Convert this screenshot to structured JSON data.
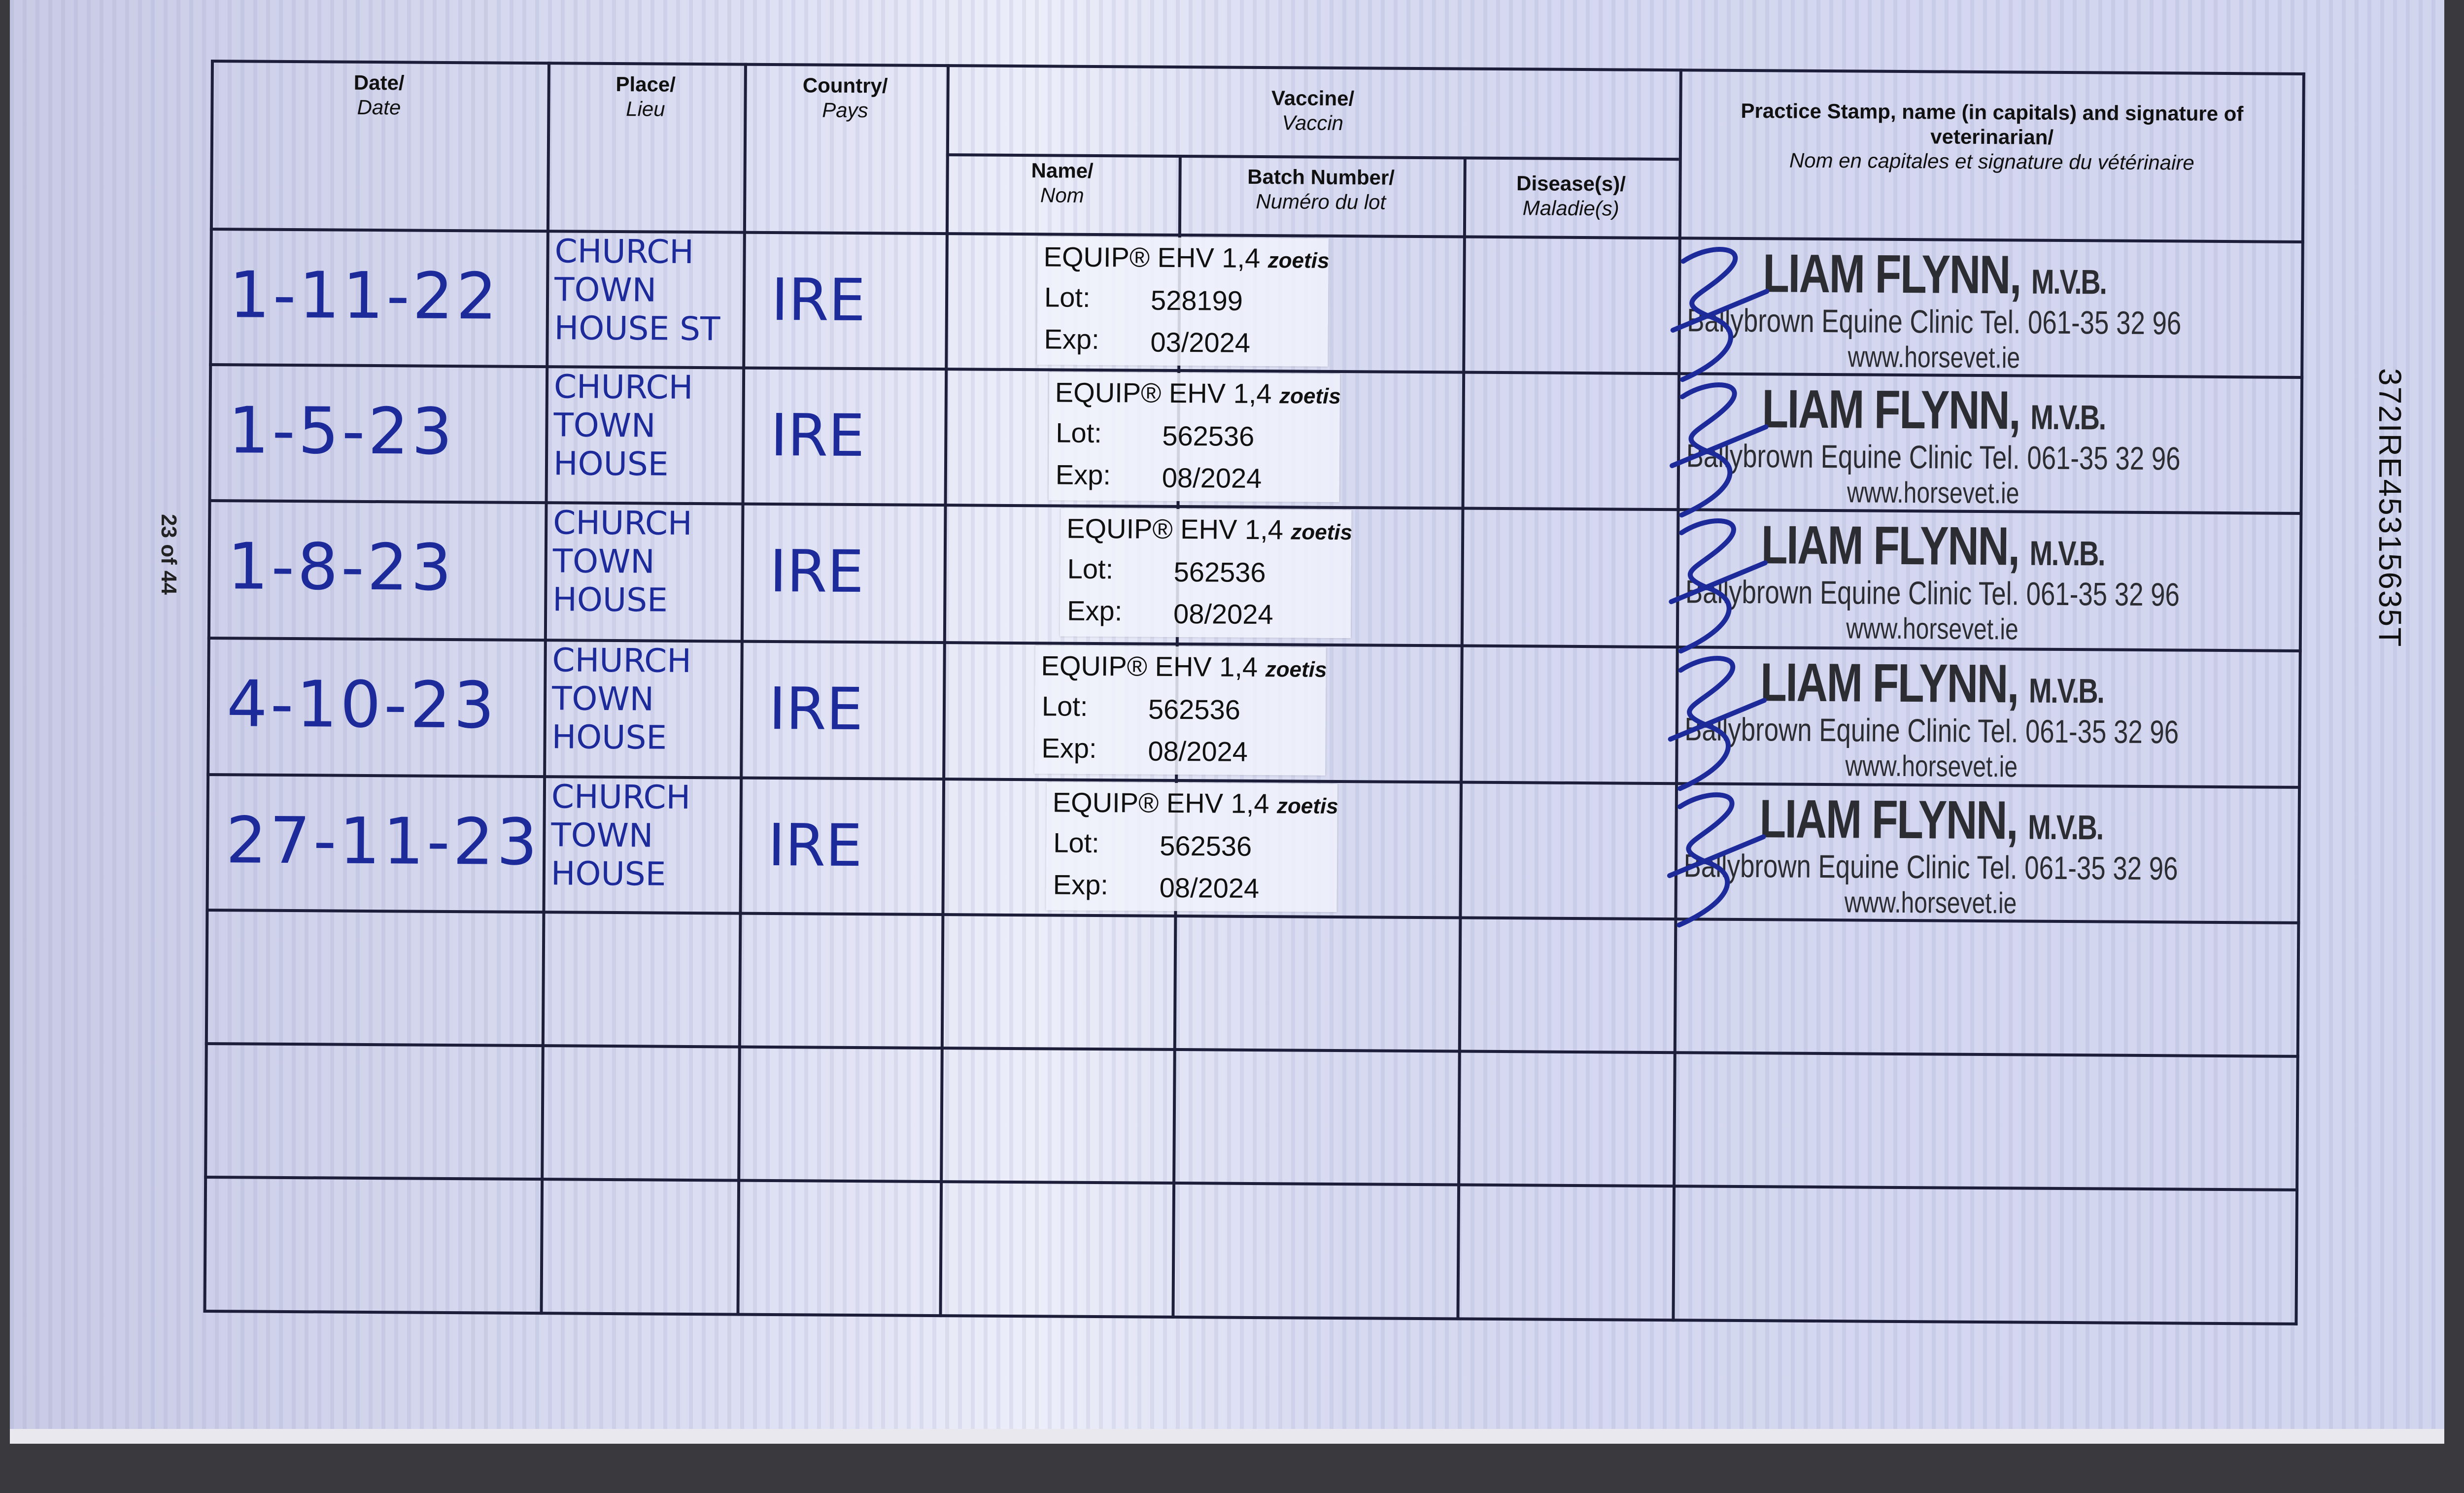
{
  "page_number": "23 of 44",
  "passport_id": "372IRE45315635T",
  "headers": {
    "date": {
      "en": "Date/",
      "fr": "Date"
    },
    "place": {
      "en": "Place/",
      "fr": "Lieu"
    },
    "country": {
      "en": "Country/",
      "fr": "Pays"
    },
    "vaccine": {
      "en": "Vaccine/",
      "fr": "Vaccin"
    },
    "name": {
      "en": "Name/",
      "fr": "Nom"
    },
    "batch": {
      "en": "Batch Number/",
      "fr": "Numéro du lot"
    },
    "disease": {
      "en": "Disease(s)/",
      "fr": "Maladie(s)"
    },
    "vet": {
      "en1": "Practice Stamp, name (in capitals) and signature of",
      "en2": "veterinarian/",
      "fr": "Nom en capitales et signature du vétérinaire"
    }
  },
  "sticker_labels": {
    "product": "EQUIP® EHV 1,4",
    "brand": "zoetis",
    "lot": "Lot:",
    "exp": "Exp:"
  },
  "stamp": {
    "name": "LIAM FLYNN,",
    "title": "M.V.B.",
    "clinic": "Ballybrown Equine Clinic Tel. 061-35 32 96",
    "web": "www.horsevet.ie"
  },
  "ink_color": "#1c2a9a",
  "entries": [
    {
      "date": "1-11-22",
      "place": "CHURCH TOWN HOUSE ST",
      "country": "IRE",
      "lot": "528199",
      "exp": "03/2024"
    },
    {
      "date": "1-5-23",
      "place": "CHURCH TOWN HOUSE",
      "country": "IRE",
      "lot": "562536",
      "exp": "08/2024"
    },
    {
      "date": "1-8-23",
      "place": "CHURCH TOWN HOUSE",
      "country": "IRE",
      "lot": "562536",
      "exp": "08/2024"
    },
    {
      "date": "4-10-23",
      "place": "CHURCH TOWN HOUSE",
      "country": "IRE",
      "lot": "562536",
      "exp": "08/2024"
    },
    {
      "date": "27-11-23",
      "place": "CHURCH TOWN HOUSE",
      "country": "IRE",
      "lot": "562536",
      "exp": "08/2024"
    }
  ]
}
